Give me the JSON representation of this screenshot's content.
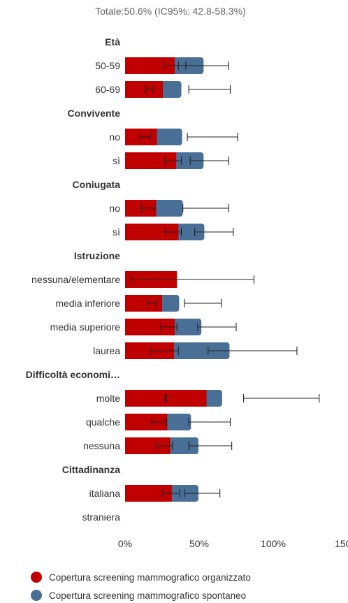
{
  "chart_data": {
    "type": "bar",
    "orientation": "horizontal",
    "stacked": true,
    "subtitle": "Totale:50.6% (IC95%: 42.8-58.3%)",
    "xlim": [
      0,
      150
    ],
    "xticks": [
      "0%",
      "50%",
      "100%",
      "150%"
    ],
    "colors": {
      "organizzato": "#c00000",
      "spontaneo": "#4a6f96"
    },
    "legend_position": "bottom",
    "series": [
      {
        "name": "Copertura screening mammografico organizzato"
      },
      {
        "name": "Copertura screening mammografico spontaneo"
      }
    ],
    "groups": [
      {
        "label": "Età",
        "rows": [
          {
            "label": "50-59",
            "org": 33.5,
            "spont": 19.5,
            "org_ci": [
              26,
              41
            ],
            "spont_ci": [
              36,
              70
            ]
          },
          {
            "label": "60-69",
            "org": 25.5,
            "spont": 12.5,
            "org_ci": [
              14,
              19
            ],
            "spont_ci": [
              43,
              71
            ]
          }
        ]
      },
      {
        "label": "Convivente",
        "rows": [
          {
            "label": "no",
            "org": 21.5,
            "spont": 17,
            "org_ci": [
              10,
              17
            ],
            "spont_ci": [
              42,
              76
            ]
          },
          {
            "label": "sì",
            "org": 34.5,
            "spont": 18.5,
            "org_ci": [
              27,
              38
            ],
            "spont_ci": [
              44,
              70
            ]
          }
        ]
      },
      {
        "label": "Coniugata",
        "rows": [
          {
            "label": "no",
            "org": 21,
            "spont": 18,
            "org_ci": [
              11,
              20
            ],
            "spont_ci": [
              39,
              70
            ]
          },
          {
            "label": "sì",
            "org": 36,
            "spont": 17.5,
            "org_ci": [
              27,
              38
            ],
            "spont_ci": [
              47,
              73
            ]
          }
        ]
      },
      {
        "label": "Istruzione",
        "rows": [
          {
            "label": "nessuna/elementare",
            "org": 35,
            "spont": 0,
            "org_ci": [
              4,
              87
            ],
            "spont_ci": null
          },
          {
            "label": "media inferiore",
            "org": 25,
            "spont": 11.5,
            "org_ci": [
              15,
              21
            ],
            "spont_ci": [
              40,
              65
            ]
          },
          {
            "label": "media superiore",
            "org": 33.5,
            "spont": 18,
            "org_ci": [
              24,
              35
            ],
            "spont_ci": [
              49,
              75
            ]
          },
          {
            "label": "laurea",
            "org": 33,
            "spont": 37.5,
            "org_ci": [
              17,
              36
            ],
            "spont_ci": [
              56,
              116
            ]
          }
        ]
      },
      {
        "label": "Difficoltà economi…",
        "rows": [
          {
            "label": "molte",
            "org": 55,
            "spont": 10.5,
            "org_ci": [
              27,
              28
            ],
            "spont_ci": [
              80,
              131
            ]
          },
          {
            "label": "qualche",
            "org": 28.5,
            "spont": 16,
            "org_ci": [
              18,
              28
            ],
            "spont_ci": [
              43,
              71
            ]
          },
          {
            "label": "nessuna",
            "org": 30.5,
            "spont": 19,
            "org_ci": [
              21,
              32
            ],
            "spont_ci": [
              43,
              72
            ]
          }
        ]
      },
      {
        "label": "Cittadinanza",
        "rows": [
          {
            "label": "italiana",
            "org": 31.5,
            "spont": 18,
            "org_ci": [
              25,
              37
            ],
            "spont_ci": [
              40,
              64
            ]
          },
          {
            "label": "straniera",
            "org": null,
            "spont": null,
            "org_ci": null,
            "spont_ci": null
          }
        ]
      }
    ]
  }
}
